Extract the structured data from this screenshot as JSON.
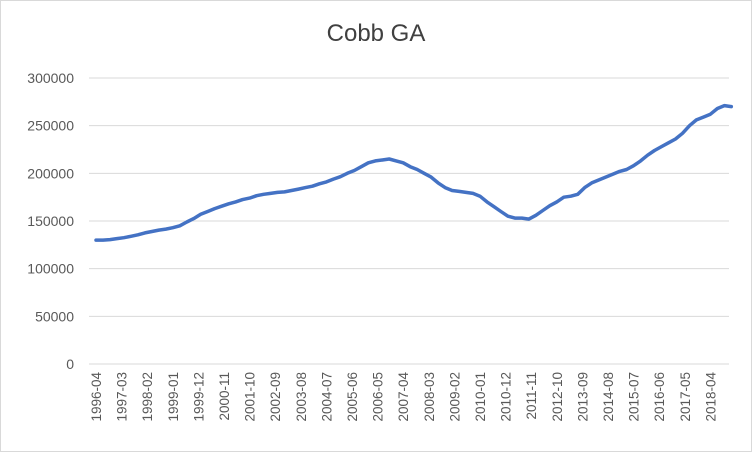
{
  "chart_data": {
    "type": "line",
    "title": "Cobb GA",
    "xlabel": "",
    "ylabel": "",
    "ylim": [
      0,
      300000
    ],
    "y_ticks": [
      0,
      50000,
      100000,
      150000,
      200000,
      250000,
      300000
    ],
    "x_tick_labels": [
      "1996-04",
      "1997-03",
      "1998-02",
      "1999-01",
      "1999-12",
      "2000-11",
      "2001-10",
      "2002-09",
      "2003-08",
      "2004-07",
      "2005-06",
      "2006-05",
      "2007-04",
      "2008-03",
      "2009-02",
      "2010-01",
      "2010-12",
      "2011-11",
      "2012-10",
      "2013-09",
      "2014-08",
      "2015-07",
      "2016-06",
      "2017-05",
      "2018-04"
    ],
    "grid": true,
    "legend": "none",
    "series": [
      {
        "color": "#4472c4",
        "x": [
          "1996-04",
          "1996-07",
          "1996-10",
          "1997-01",
          "1997-04",
          "1997-07",
          "1997-10",
          "1998-01",
          "1998-04",
          "1998-07",
          "1998-10",
          "1999-01",
          "1999-04",
          "1999-07",
          "1999-10",
          "2000-01",
          "2000-04",
          "2000-07",
          "2000-10",
          "2001-01",
          "2001-04",
          "2001-07",
          "2001-10",
          "2002-01",
          "2002-04",
          "2002-07",
          "2002-10",
          "2003-01",
          "2003-04",
          "2003-07",
          "2003-10",
          "2004-01",
          "2004-04",
          "2004-07",
          "2004-10",
          "2005-01",
          "2005-04",
          "2005-07",
          "2005-10",
          "2006-01",
          "2006-04",
          "2006-07",
          "2006-10",
          "2007-01",
          "2007-04",
          "2007-07",
          "2007-10",
          "2008-01",
          "2008-04",
          "2008-07",
          "2008-10",
          "2009-01",
          "2009-04",
          "2009-07",
          "2009-10",
          "2010-01",
          "2010-04",
          "2010-07",
          "2010-10",
          "2011-01",
          "2011-04",
          "2011-07",
          "2011-10",
          "2012-01",
          "2012-04",
          "2012-07",
          "2012-10",
          "2013-01",
          "2013-04",
          "2013-07",
          "2013-10",
          "2014-01",
          "2014-04",
          "2014-07",
          "2014-10",
          "2015-01",
          "2015-04",
          "2015-07",
          "2015-10",
          "2016-01",
          "2016-04",
          "2016-07",
          "2016-10",
          "2017-01",
          "2017-04",
          "2017-07",
          "2017-10",
          "2018-01",
          "2018-04",
          "2018-07",
          "2018-10",
          "2019-01"
        ],
        "values": [
          130000,
          130000,
          130500,
          131500,
          132500,
          134000,
          135500,
          137500,
          139000,
          140500,
          141500,
          143000,
          145000,
          149000,
          152500,
          157000,
          160000,
          163000,
          165500,
          168000,
          170000,
          172500,
          174000,
          176500,
          178000,
          179000,
          180000,
          180500,
          182000,
          183500,
          185000,
          186500,
          189000,
          191000,
          194000,
          196500,
          200000,
          203000,
          207000,
          211000,
          213000,
          214000,
          215000,
          213000,
          211000,
          207000,
          204000,
          200000,
          196000,
          190000,
          185000,
          182000,
          181000,
          180000,
          179000,
          176000,
          170000,
          165000,
          160000,
          155000,
          153000,
          153000,
          152000,
          156000,
          161000,
          166000,
          170000,
          175000,
          176000,
          178000,
          185000,
          190000,
          193000,
          196000,
          199000,
          202000,
          204000,
          208000,
          213000,
          219000,
          224000,
          228000,
          232000,
          236000,
          242000,
          250000,
          256000,
          259000,
          262000,
          268000,
          271000,
          270000
        ]
      }
    ]
  }
}
